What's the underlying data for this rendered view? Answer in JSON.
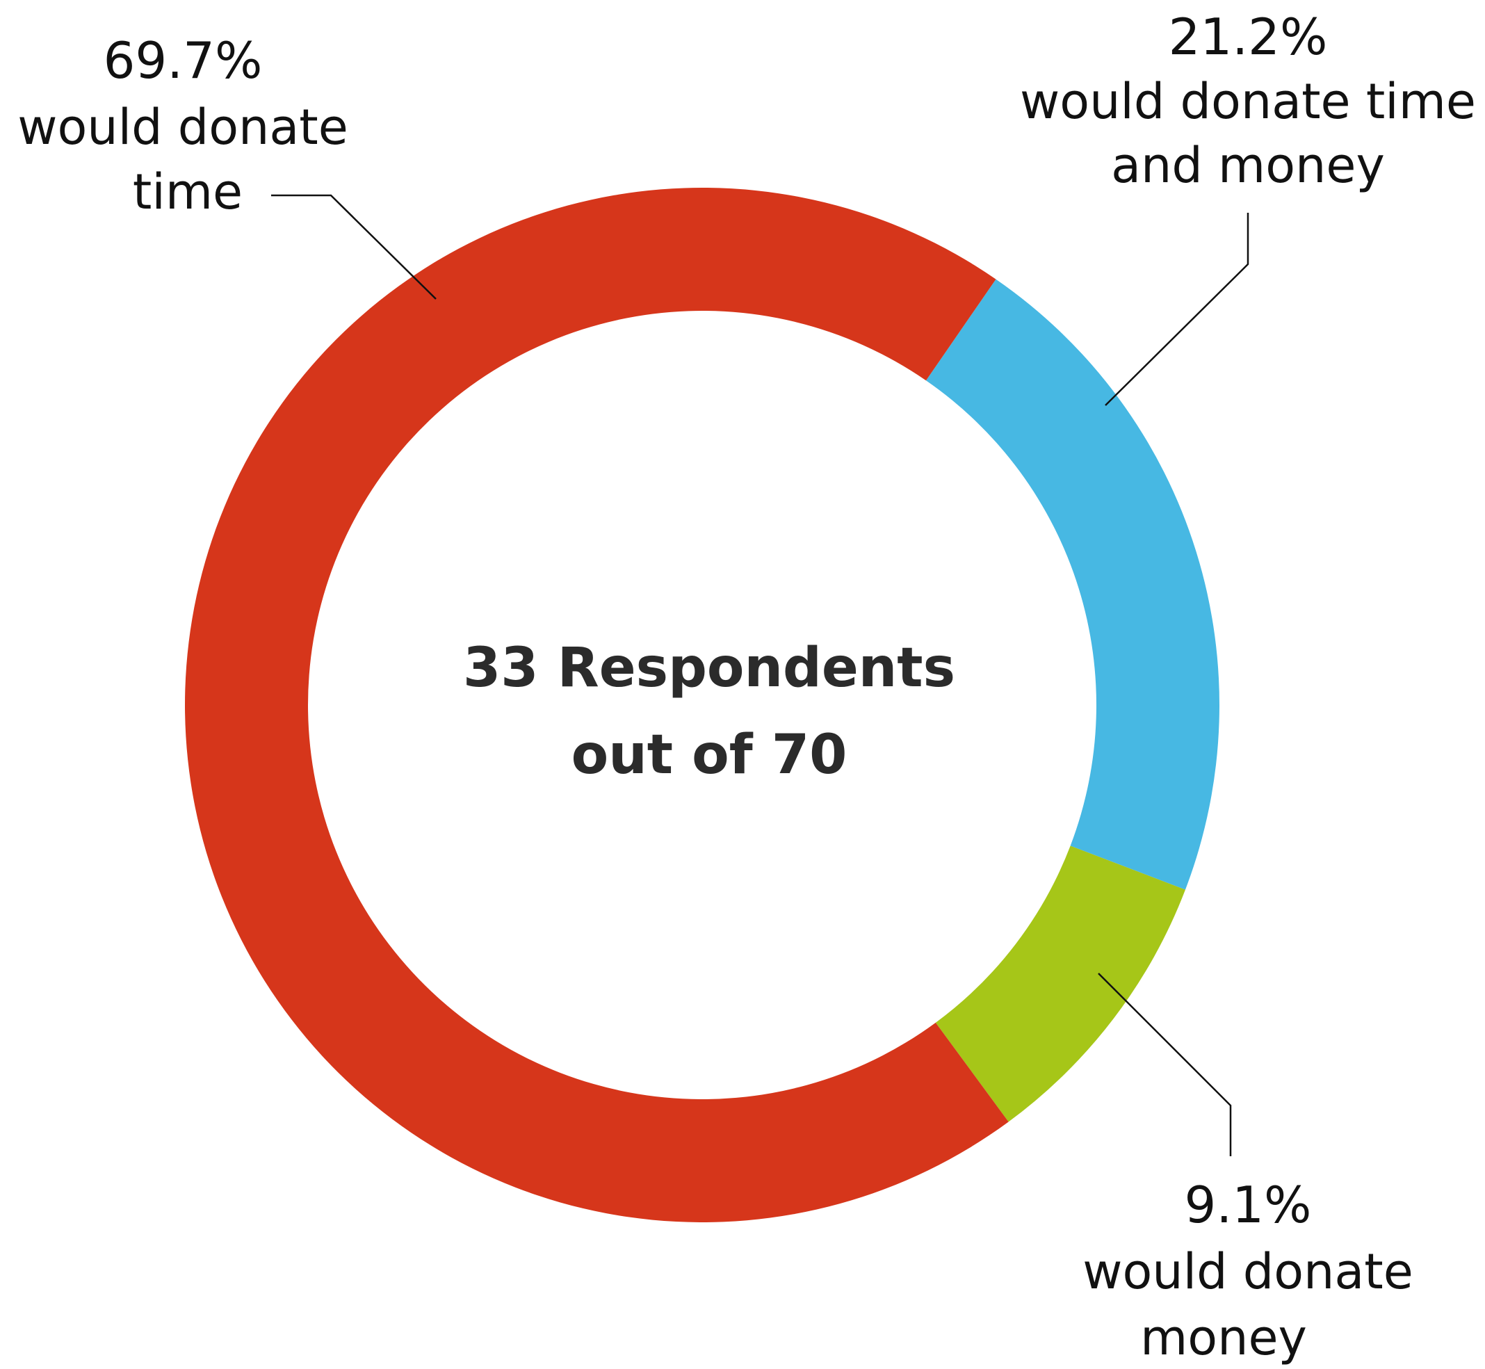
{
  "chart_data": {
    "type": "pie",
    "title": "",
    "center_label": [
      "33 Respondents",
      "out of 70"
    ],
    "slices": [
      {
        "label": "would donate time",
        "value": 69.7,
        "value_label": "69.7%",
        "label_lines": [
          "would donate",
          "time"
        ],
        "color": "#d6361b"
      },
      {
        "label": "would donate time and money",
        "value": 21.2,
        "value_label": "21.2%",
        "label_lines": [
          "would donate time",
          "and money"
        ],
        "color": "#47b8e3"
      },
      {
        "label": "would donate money",
        "value": 9.1,
        "value_label": "9.1%",
        "label_lines": [
          "would donate",
          "money"
        ],
        "color": "#a6c618"
      }
    ]
  }
}
